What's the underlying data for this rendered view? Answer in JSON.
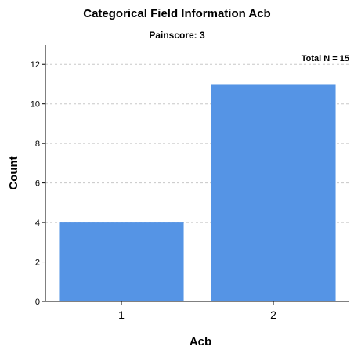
{
  "chart_data": {
    "type": "bar",
    "title": "Categorical Field Information Acb",
    "subtitle": "Painscore: 3",
    "annotation": "Total N =  15",
    "xlabel": "Acb",
    "ylabel": "Count",
    "categories": [
      "1",
      "2"
    ],
    "values": [
      4,
      11
    ],
    "ylim": [
      0,
      13
    ],
    "yticks": [
      0,
      2,
      4,
      6,
      8,
      10,
      12
    ],
    "grid": true,
    "bar_color": "#5594e5",
    "grid_color": "#c8c8c8"
  }
}
